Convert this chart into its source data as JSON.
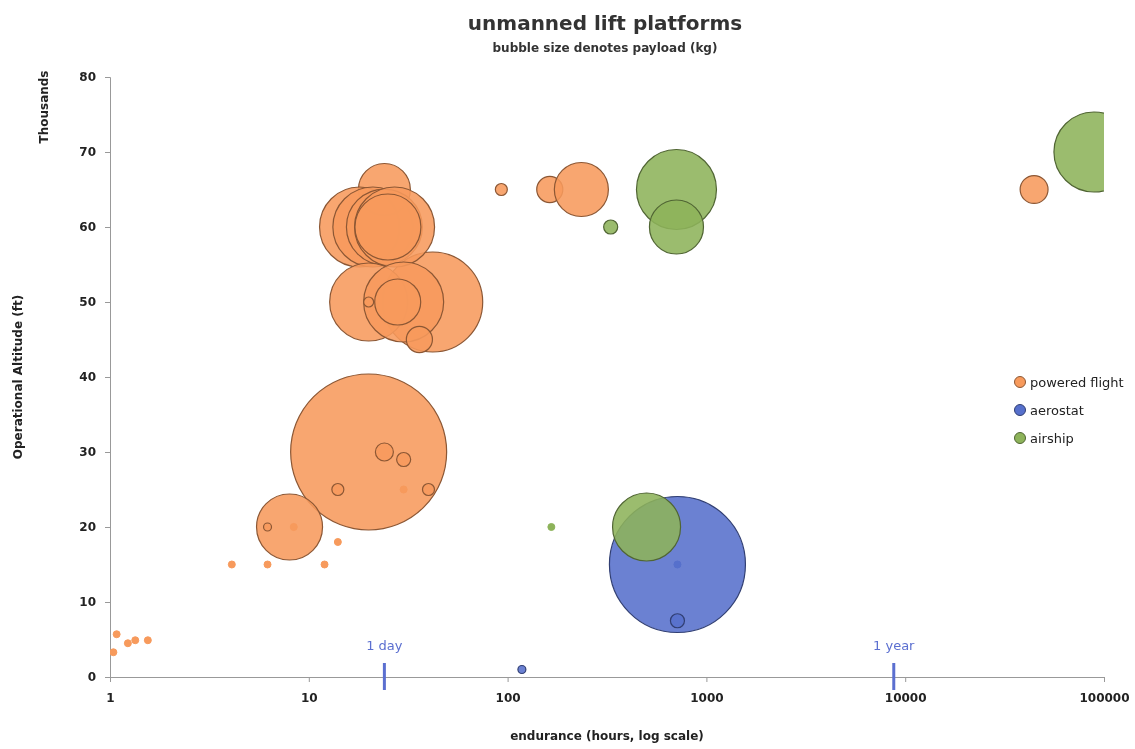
{
  "chart_data": {
    "type": "bubble",
    "title": "unmanned lift platforms",
    "subtitle": "bubble size denotes payload (kg)",
    "xlabel": "endurance (hours, log scale)",
    "ylabel": "Operational Altitude (ft)",
    "annotations": [
      "Thousands"
    ],
    "log": "x",
    "xlim": [
      1,
      100000
    ],
    "xticks": [
      1,
      10,
      100,
      1000,
      10000,
      100000
    ],
    "ylim": [
      0,
      80
    ],
    "yticks": [
      0,
      10,
      20,
      30,
      40,
      50,
      60,
      70,
      80
    ],
    "legend": "right",
    "ref_lines": [
      {
        "axis": "x",
        "value": 24,
        "label": "1 day",
        "color": "#5b6fd0"
      },
      {
        "axis": "x",
        "value": 8760,
        "label": "1 year",
        "color": "#5b6fd0"
      }
    ],
    "series": [
      {
        "name": "powered flight",
        "color": "#f79a5c",
        "x": [
          20,
          42,
          24,
          18,
          21,
          24,
          27,
          25,
          20,
          30,
          28,
          20,
          36,
          8,
          24,
          30,
          14,
          40,
          30,
          6.2,
          8.4,
          14,
          4.1,
          6.2,
          12,
          1.08,
          1.23,
          1.34,
          1.55,
          1.04,
          93,
          163,
          235,
          44500
        ],
        "values": [
          30,
          50,
          65,
          60,
          60,
          60,
          60,
          60,
          50,
          50,
          50,
          50,
          45,
          20,
          30,
          29,
          25,
          25,
          25,
          20,
          20,
          18,
          15,
          15,
          15,
          5.7,
          4.5,
          4.9,
          4.9,
          3.3,
          65,
          65,
          65,
          65
        ],
        "sizes": [
          1,
          0.411,
          0.111,
          0.263,
          0.263,
          0.237,
          0.263,
          0.179,
          0.25,
          0.263,
          0.087,
          0.0041,
          0.028,
          0.179,
          0.0133,
          0.0081,
          0.0059,
          0.0059,
          0.002,
          0.0026,
          0.002,
          0.002,
          0.002,
          0.002,
          0.002,
          0.002,
          0.002,
          0.002,
          0.002,
          0.002,
          0.0059,
          0.028,
          0.12,
          0.032
        ]
      },
      {
        "name": "aerostat",
        "color": "#5670cc",
        "x": [
          715,
          715,
          715,
          118
        ],
        "values": [
          15,
          15,
          7.5,
          1
        ],
        "sizes": [
          0.76,
          0.002,
          0.0081,
          0.0026
        ]
      },
      {
        "name": "airship",
        "color": "#8db35a",
        "x": [
          707,
          707,
          330,
          500,
          166,
          89000
        ],
        "values": [
          65,
          60,
          60,
          20,
          20,
          70
        ],
        "sizes": [
          0.263,
          0.12,
          0.0081,
          0.19,
          0.002,
          0.263
        ]
      }
    ]
  }
}
